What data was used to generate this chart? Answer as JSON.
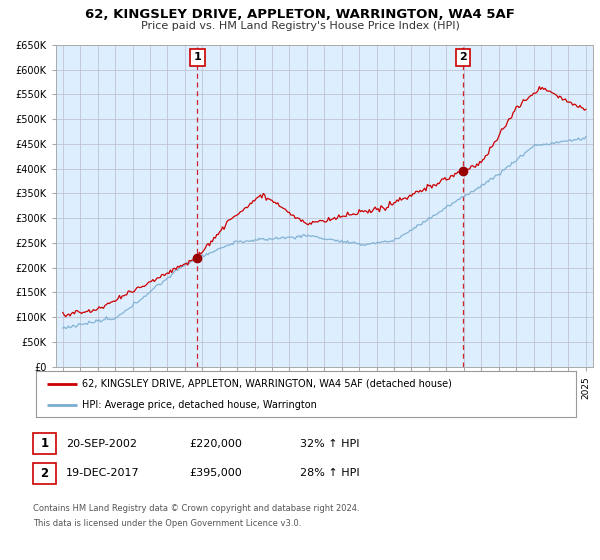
{
  "title": "62, KINGSLEY DRIVE, APPLETON, WARRINGTON, WA4 5AF",
  "subtitle": "Price paid vs. HM Land Registry's House Price Index (HPI)",
  "ylabel_ticks": [
    "£0",
    "£50K",
    "£100K",
    "£150K",
    "£200K",
    "£250K",
    "£300K",
    "£350K",
    "£400K",
    "£450K",
    "£500K",
    "£550K",
    "£600K",
    "£650K"
  ],
  "ytick_values": [
    0,
    50000,
    100000,
    150000,
    200000,
    250000,
    300000,
    350000,
    400000,
    450000,
    500000,
    550000,
    600000,
    650000
  ],
  "xlim_min": 1994.6,
  "xlim_max": 2025.4,
  "ylim_min": 0,
  "ylim_max": 650000,
  "sale1_year": 2002.72,
  "sale1_value": 220000,
  "sale2_year": 2017.96,
  "sale2_value": 395000,
  "legend_line1": "62, KINGSLEY DRIVE, APPLETON, WARRINGTON, WA4 5AF (detached house)",
  "legend_line2": "HPI: Average price, detached house, Warrington",
  "table_row1_num": "1",
  "table_row1_date": "20-SEP-2002",
  "table_row1_price": "£220,000",
  "table_row1_hpi": "32% ↑ HPI",
  "table_row2_num": "2",
  "table_row2_date": "19-DEC-2017",
  "table_row2_price": "£395,000",
  "table_row2_hpi": "28% ↑ HPI",
  "footnote_line1": "Contains HM Land Registry data © Crown copyright and database right 2024.",
  "footnote_line2": "This data is licensed under the Open Government Licence v3.0.",
  "line_color_red": "#cc0000",
  "line_color_blue": "#7aadd0",
  "fill_color_blue": "#d6e8f5",
  "vline_color": "#cc0000",
  "bg_color": "#ffffff",
  "plot_bg_color": "#ddeeff",
  "grid_color": "#bbbbcc"
}
